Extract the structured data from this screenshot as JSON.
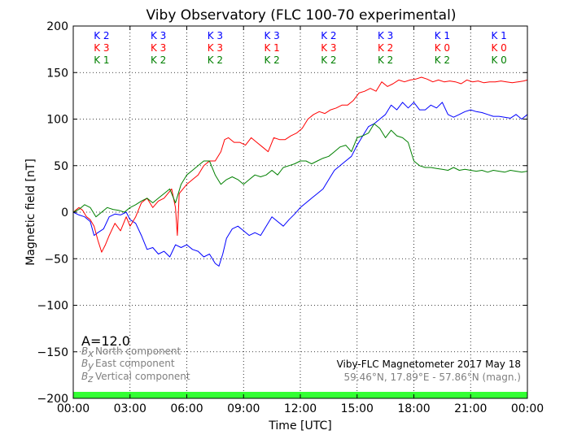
{
  "chart_data": {
    "type": "line",
    "title": "Viby Observatory (FLC 100-70 experimental)",
    "xlabel": "Time [UTC]",
    "ylabel": "Magnetic field [nT]",
    "xlim": [
      0,
      24
    ],
    "ylim": [
      -200,
      200
    ],
    "x_ticks": [
      0,
      3,
      6,
      9,
      12,
      15,
      18,
      21,
      24
    ],
    "x_tick_labels": [
      "00:00",
      "03:00",
      "06:00",
      "09:00",
      "12:00",
      "15:00",
      "18:00",
      "21:00",
      "00:00"
    ],
    "y_ticks": [
      -200,
      -150,
      -100,
      -50,
      0,
      50,
      100,
      150,
      200
    ],
    "y_tick_labels": [
      "−200",
      "−150",
      "−100",
      "−50",
      "0",
      "50",
      "100",
      "150",
      "200"
    ],
    "grid": true,
    "k_index_rows": [
      {
        "color": "#0000ff",
        "labels": [
          "K 2",
          "K 3",
          "K 3",
          "K 3",
          "K 2",
          "K 3",
          "K 1",
          "K 1"
        ]
      },
      {
        "color": "#ff0000",
        "labels": [
          "K 3",
          "K 3",
          "K 3",
          "K 1",
          "K 3",
          "K 2",
          "K 0",
          "K 0"
        ]
      },
      {
        "color": "#008000",
        "labels": [
          "K 1",
          "K 2",
          "K 2",
          "K 2",
          "K 2",
          "K 2",
          "K 2",
          "K 0"
        ]
      }
    ],
    "a_index": "A=12.0",
    "series": [
      {
        "symbol": "B",
        "subscript": "x",
        "name": "North component",
        "color": "#0000ff",
        "x": [
          0,
          0.3,
          0.6,
          0.9,
          1.1,
          1.3,
          1.6,
          1.9,
          2.2,
          2.5,
          2.8,
          3.0,
          3.3,
          3.6,
          3.9,
          4.2,
          4.5,
          4.8,
          5.1,
          5.4,
          5.7,
          6.0,
          6.3,
          6.6,
          6.9,
          7.2,
          7.5,
          7.7,
          7.9,
          8.1,
          8.4,
          8.7,
          9.0,
          9.3,
          9.6,
          9.9,
          10.2,
          10.5,
          10.8,
          11.1,
          11.4,
          11.7,
          12.0,
          12.3,
          12.6,
          12.9,
          13.2,
          13.5,
          13.8,
          14.1,
          14.4,
          14.7,
          15.0,
          15.3,
          15.6,
          15.9,
          16.2,
          16.5,
          16.8,
          17.1,
          17.4,
          17.7,
          18.0,
          18.3,
          18.6,
          18.9,
          19.2,
          19.5,
          19.8,
          20.1,
          20.4,
          20.7,
          21.0,
          21.3,
          21.6,
          21.9,
          22.2,
          22.5,
          22.8,
          23.1,
          23.4,
          23.7,
          24.0
        ],
        "y": [
          0,
          -3,
          -5,
          -10,
          -25,
          -22,
          -18,
          -5,
          -2,
          -3,
          0,
          -8,
          -12,
          -25,
          -40,
          -38,
          -45,
          -42,
          -48,
          -35,
          -38,
          -35,
          -40,
          -42,
          -48,
          -45,
          -55,
          -58,
          -45,
          -28,
          -18,
          -15,
          -20,
          -25,
          -22,
          -25,
          -15,
          -5,
          -10,
          -15,
          -8,
          -2,
          5,
          10,
          15,
          20,
          25,
          35,
          45,
          50,
          55,
          60,
          72,
          82,
          92,
          95,
          100,
          105,
          115,
          110,
          118,
          112,
          118,
          110,
          110,
          115,
          112,
          118,
          105,
          102,
          105,
          108,
          110,
          108,
          107,
          105,
          103,
          103,
          102,
          101,
          105,
          100,
          105
        ]
      },
      {
        "symbol": "B",
        "subscript": "y",
        "name": "East component",
        "color": "#ff0000",
        "x": [
          0,
          0.3,
          0.5,
          0.7,
          0.9,
          1.1,
          1.3,
          1.5,
          1.7,
          1.9,
          2.2,
          2.5,
          2.8,
          3.0,
          3.3,
          3.6,
          3.9,
          4.2,
          4.5,
          4.8,
          5.0,
          5.2,
          5.4,
          5.5,
          5.6,
          5.8,
          6.0,
          6.3,
          6.6,
          6.9,
          7.2,
          7.5,
          7.8,
          8.0,
          8.2,
          8.5,
          8.8,
          9.1,
          9.4,
          9.7,
          10.0,
          10.3,
          10.6,
          10.9,
          11.2,
          11.5,
          11.8,
          12.1,
          12.4,
          12.7,
          13.0,
          13.3,
          13.6,
          13.9,
          14.2,
          14.5,
          14.8,
          15.1,
          15.4,
          15.7,
          16.0,
          16.3,
          16.6,
          16.9,
          17.2,
          17.5,
          17.8,
          18.1,
          18.4,
          18.7,
          19.0,
          19.3,
          19.6,
          19.9,
          20.2,
          20.5,
          20.8,
          21.1,
          21.4,
          21.7,
          22.0,
          22.3,
          22.6,
          22.9,
          23.2,
          23.5,
          23.8,
          24.0
        ],
        "y": [
          0,
          5,
          2,
          -5,
          -8,
          -15,
          -30,
          -43,
          -35,
          -25,
          -12,
          -20,
          -5,
          -15,
          -5,
          10,
          15,
          5,
          12,
          15,
          20,
          25,
          5,
          -25,
          20,
          25,
          30,
          35,
          40,
          50,
          55,
          55,
          65,
          78,
          80,
          75,
          75,
          72,
          80,
          75,
          70,
          65,
          80,
          78,
          78,
          82,
          85,
          90,
          100,
          105,
          108,
          106,
          110,
          112,
          115,
          115,
          120,
          128,
          130,
          133,
          130,
          140,
          135,
          138,
          142,
          140,
          142,
          143,
          145,
          143,
          140,
          142,
          140,
          141,
          140,
          138,
          142,
          140,
          141,
          139,
          140,
          140,
          141,
          140,
          139,
          140,
          141,
          142
        ]
      },
      {
        "symbol": "B",
        "subscript": "z",
        "name": "Vertical component",
        "color": "#008000",
        "x": [
          0,
          0.3,
          0.6,
          0.9,
          1.2,
          1.5,
          1.8,
          2.1,
          2.4,
          2.7,
          3.0,
          3.3,
          3.6,
          3.9,
          4.2,
          4.5,
          4.8,
          5.1,
          5.4,
          5.7,
          6.0,
          6.3,
          6.6,
          6.9,
          7.2,
          7.5,
          7.8,
          8.1,
          8.4,
          8.7,
          9.0,
          9.3,
          9.6,
          9.9,
          10.2,
          10.5,
          10.8,
          11.1,
          11.4,
          11.7,
          12.0,
          12.3,
          12.6,
          12.9,
          13.2,
          13.5,
          13.8,
          14.1,
          14.4,
          14.7,
          15.0,
          15.3,
          15.6,
          15.9,
          16.2,
          16.5,
          16.8,
          17.1,
          17.4,
          17.7,
          18.0,
          18.3,
          18.6,
          18.9,
          19.2,
          19.5,
          19.8,
          20.1,
          20.4,
          20.7,
          21.0,
          21.3,
          21.6,
          21.9,
          22.2,
          22.5,
          22.8,
          23.1,
          23.4,
          23.7,
          24.0
        ],
        "y": [
          0,
          3,
          8,
          5,
          -5,
          0,
          5,
          3,
          2,
          0,
          5,
          8,
          12,
          15,
          10,
          15,
          20,
          25,
          10,
          30,
          40,
          45,
          50,
          55,
          55,
          40,
          30,
          35,
          38,
          35,
          30,
          35,
          40,
          38,
          40,
          45,
          40,
          48,
          50,
          52,
          55,
          55,
          52,
          55,
          58,
          60,
          65,
          70,
          72,
          65,
          80,
          82,
          85,
          95,
          90,
          80,
          88,
          82,
          80,
          75,
          55,
          50,
          48,
          48,
          47,
          46,
          45,
          48,
          45,
          46,
          45,
          44,
          45,
          43,
          45,
          44,
          43,
          45,
          44,
          43,
          44
        ]
      }
    ]
  },
  "info": {
    "instrument": "Viby-FLC Magnetometer 2017 May 18",
    "location": "59.46°N, 17.89°E - 57.86°N (magn.)"
  },
  "colors": {
    "status_bar": "#33ff33",
    "grid": "#000000",
    "info_secondary": "#808080"
  }
}
